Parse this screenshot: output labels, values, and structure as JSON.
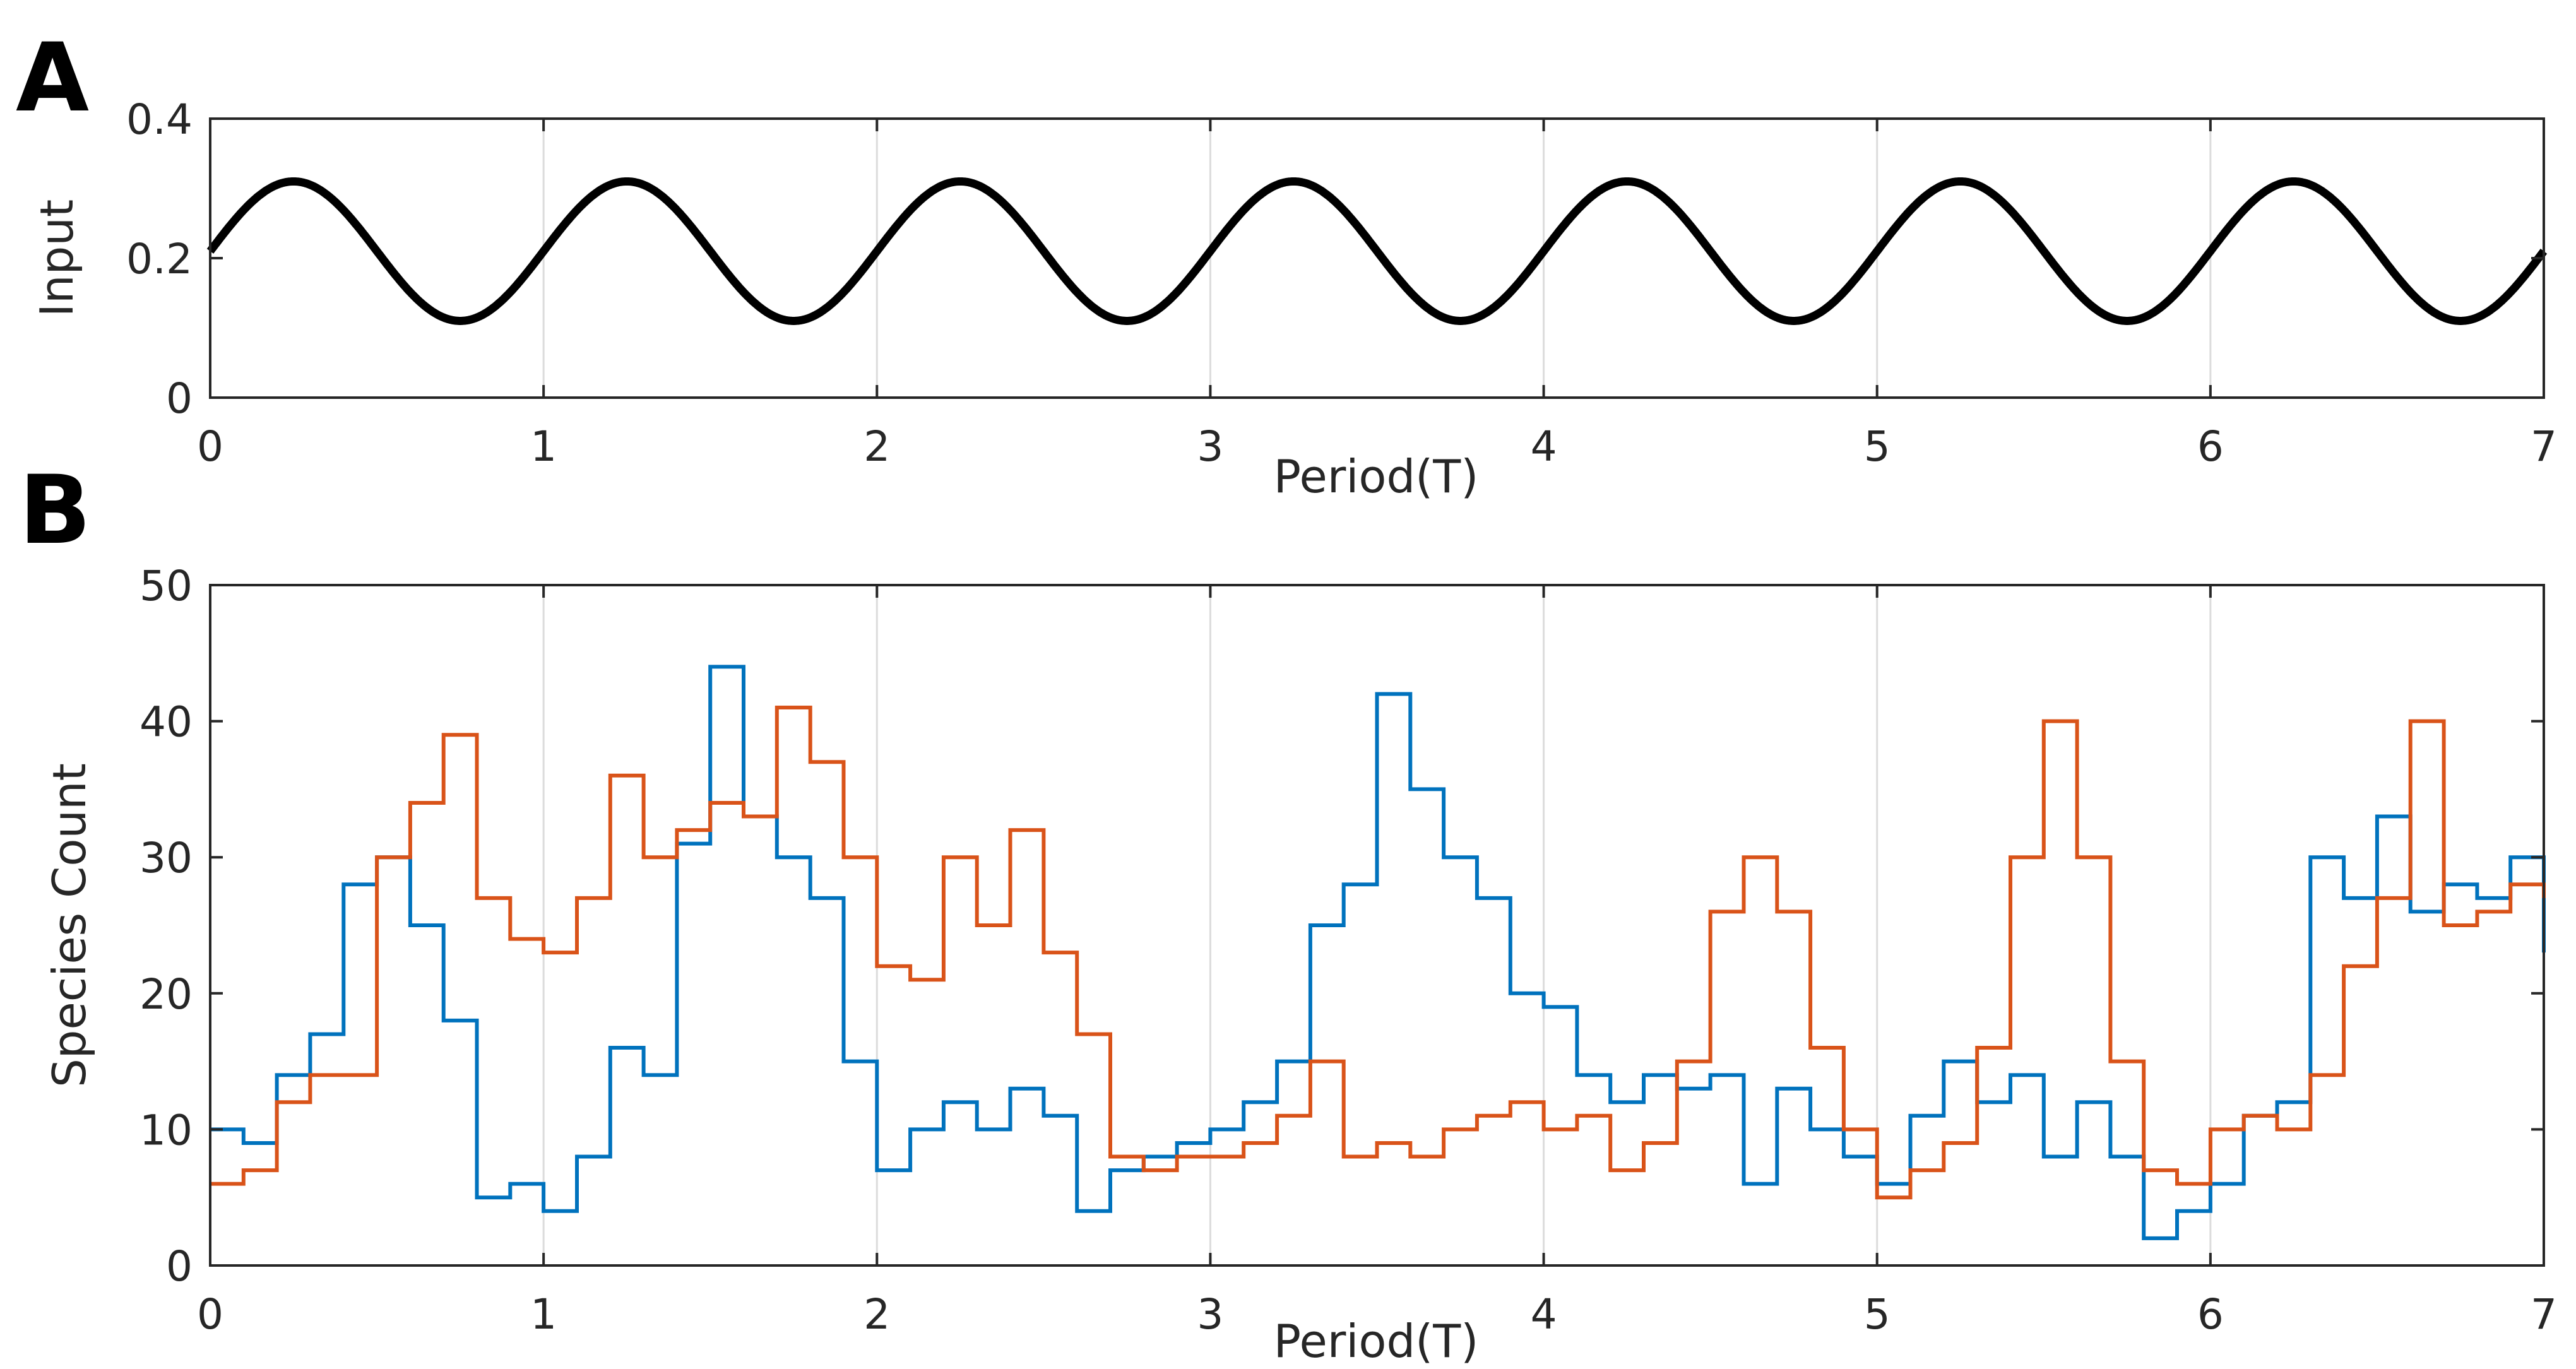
{
  "figure": {
    "panel_a_label": "A",
    "panel_b_label": "B"
  },
  "chart_data": [
    {
      "type": "line",
      "panel": "A",
      "xlabel": "Period(T)",
      "ylabel": "Input",
      "xlim": [
        0,
        7
      ],
      "ylim": [
        0,
        0.4
      ],
      "xticks": [
        "0",
        "1",
        "2",
        "3",
        "4",
        "5",
        "6",
        "7"
      ],
      "yticks": [
        "0",
        "0.2",
        "0.4"
      ],
      "grid": "vertical",
      "series": [
        {
          "color": "#000000",
          "function": "0.21 + 0.1*sin(2*pi*t)",
          "mean": 0.21,
          "amplitude": 0.1,
          "period": 1
        }
      ]
    },
    {
      "type": "line",
      "panel": "B",
      "xlabel": "Period(T)",
      "ylabel": "Species Count",
      "xlim": [
        0,
        7
      ],
      "ylim": [
        0,
        50
      ],
      "xticks": [
        "0",
        "1",
        "2",
        "3",
        "4",
        "5",
        "6",
        "7"
      ],
      "yticks": [
        "0",
        "10",
        "20",
        "30",
        "40",
        "50"
      ],
      "grid": "vertical",
      "series": [
        {
          "color": "#0072BD",
          "x": [
            0,
            0.1,
            0.2,
            0.3,
            0.4,
            0.5,
            0.6,
            0.7,
            0.8,
            0.9,
            1.0,
            1.1,
            1.2,
            1.3,
            1.4,
            1.5,
            1.6,
            1.7,
            1.8,
            1.9,
            2.0,
            2.1,
            2.2,
            2.3,
            2.4,
            2.5,
            2.6,
            2.7,
            2.8,
            2.9,
            3.0,
            3.1,
            3.2,
            3.3,
            3.4,
            3.5,
            3.6,
            3.7,
            3.8,
            3.9,
            4.0,
            4.1,
            4.2,
            4.3,
            4.4,
            4.5,
            4.6,
            4.7,
            4.8,
            4.9,
            5.0,
            5.1,
            5.2,
            5.3,
            5.4,
            5.5,
            5.6,
            5.7,
            5.8,
            5.9,
            6.0,
            6.1,
            6.2,
            6.3,
            6.4,
            6.5,
            6.6,
            6.7,
            6.8,
            6.9,
            7.0
          ],
          "y": [
            10,
            9,
            14,
            17,
            28,
            30,
            25,
            18,
            5,
            6,
            4,
            8,
            16,
            14,
            31,
            44,
            33,
            30,
            27,
            15,
            7,
            10,
            12,
            10,
            13,
            11,
            4,
            7,
            8,
            9,
            10,
            12,
            15,
            25,
            28,
            42,
            35,
            30,
            27,
            20,
            19,
            14,
            12,
            14,
            13,
            14,
            6,
            13,
            10,
            8,
            6,
            11,
            15,
            12,
            14,
            8,
            12,
            8,
            2,
            4,
            6,
            11,
            12,
            30,
            27,
            33,
            26,
            28,
            27,
            30,
            23
          ]
        },
        {
          "color": "#D95319",
          "x": [
            0,
            0.1,
            0.2,
            0.3,
            0.4,
            0.5,
            0.6,
            0.7,
            0.8,
            0.9,
            1.0,
            1.1,
            1.2,
            1.3,
            1.4,
            1.5,
            1.6,
            1.7,
            1.8,
            1.9,
            2.0,
            2.1,
            2.2,
            2.3,
            2.4,
            2.5,
            2.6,
            2.7,
            2.8,
            2.9,
            3.0,
            3.1,
            3.2,
            3.3,
            3.4,
            3.5,
            3.6,
            3.7,
            3.8,
            3.9,
            4.0,
            4.1,
            4.2,
            4.3,
            4.4,
            4.5,
            4.6,
            4.7,
            4.8,
            4.9,
            5.0,
            5.1,
            5.2,
            5.3,
            5.4,
            5.5,
            5.6,
            5.7,
            5.8,
            5.9,
            6.0,
            6.1,
            6.2,
            6.3,
            6.4,
            6.5,
            6.6,
            6.7,
            6.8,
            6.9,
            7.0
          ],
          "y": [
            6,
            7,
            12,
            14,
            14,
            30,
            34,
            39,
            27,
            24,
            23,
            27,
            36,
            30,
            32,
            34,
            33,
            41,
            37,
            30,
            22,
            21,
            30,
            25,
            32,
            23,
            17,
            8,
            7,
            8,
            8,
            9,
            11,
            15,
            8,
            9,
            8,
            10,
            11,
            12,
            10,
            11,
            7,
            9,
            15,
            26,
            30,
            26,
            16,
            10,
            5,
            7,
            9,
            16,
            30,
            40,
            30,
            15,
            7,
            6,
            10,
            11,
            10,
            14,
            22,
            27,
            40,
            25,
            26,
            28,
            27
          ]
        }
      ]
    }
  ]
}
